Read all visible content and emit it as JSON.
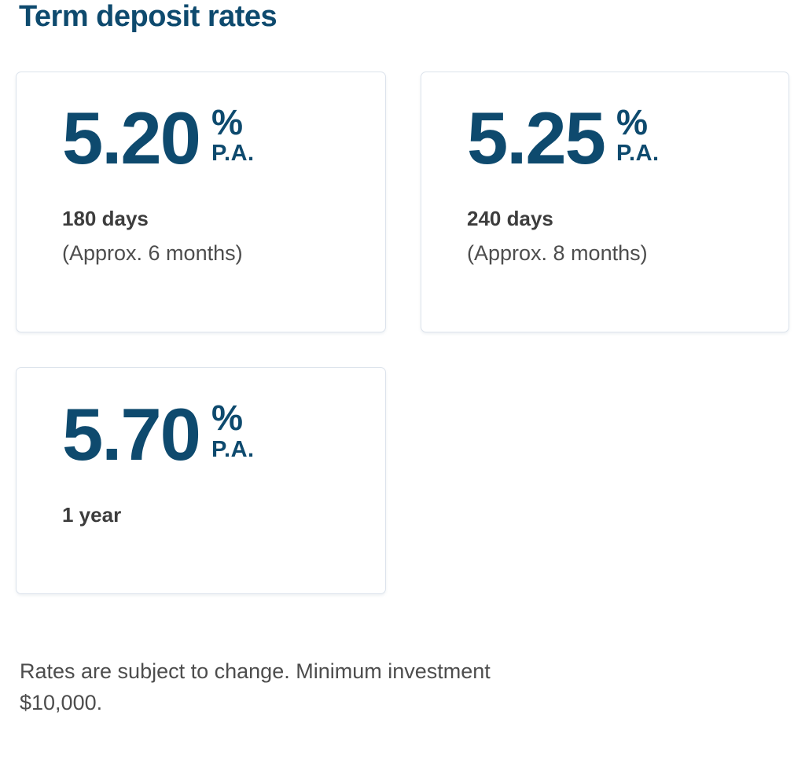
{
  "page": {
    "title": "Term deposit rates",
    "footer": "Rates are subject to change. Minimum investment $10,000."
  },
  "colors": {
    "accent_navy": "#0e4a6e",
    "card_border": "#dce3ec",
    "term_text": "#3d3d3d",
    "secondary_text": "#4d4d4d",
    "background": "#ffffff"
  },
  "rate_suffix": {
    "percent": "%",
    "per_annum": "P.A."
  },
  "cards": [
    {
      "rate": "5.20",
      "term": "180 days",
      "note": "(Approx. 6 months)"
    },
    {
      "rate": "5.25",
      "term": "240 days",
      "note": "(Approx. 8 months)"
    },
    {
      "rate": "5.70",
      "term": "1 year",
      "note": ""
    }
  ]
}
